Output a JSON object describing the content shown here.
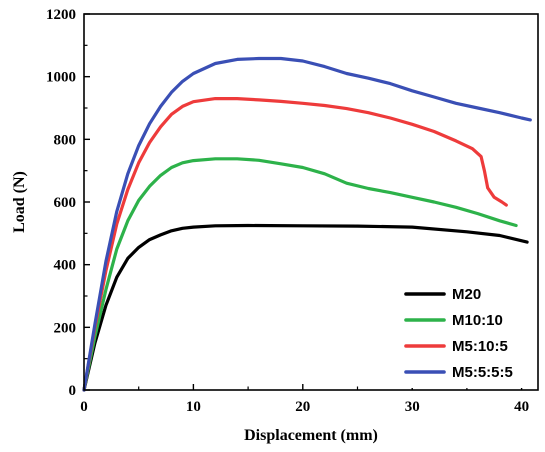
{
  "chart_data": {
    "type": "line",
    "xlabel": "Displacement (mm)",
    "ylabel": "Load (N)",
    "xlim": [
      0,
      41.5
    ],
    "ylim": [
      0,
      1200
    ],
    "xticks": [
      0,
      10,
      20,
      30,
      40
    ],
    "yticks": [
      0,
      200,
      400,
      600,
      800,
      1000,
      1200
    ],
    "tick_labels_x": [
      "0",
      "10",
      "20",
      "30",
      "40"
    ],
    "tick_labels_y": [
      "0",
      "200",
      "400",
      "600",
      "800",
      "1000",
      "1200"
    ],
    "grid": false,
    "legend_position": "bottom-right",
    "series": [
      {
        "name": "M20",
        "color": "#000000",
        "points": [
          [
            0,
            0
          ],
          [
            1,
            150
          ],
          [
            2,
            270
          ],
          [
            3,
            360
          ],
          [
            4,
            420
          ],
          [
            5,
            455
          ],
          [
            6,
            480
          ],
          [
            7,
            495
          ],
          [
            8,
            508
          ],
          [
            9,
            516
          ],
          [
            10,
            520
          ],
          [
            12,
            524
          ],
          [
            15,
            525
          ],
          [
            20,
            524
          ],
          [
            25,
            523
          ],
          [
            30,
            520
          ],
          [
            35,
            505
          ],
          [
            38,
            493
          ],
          [
            40.5,
            472
          ]
        ]
      },
      {
        "name": "M10:10",
        "color": "#2db24a",
        "points": [
          [
            0,
            0
          ],
          [
            1,
            170
          ],
          [
            2,
            320
          ],
          [
            3,
            450
          ],
          [
            4,
            540
          ],
          [
            5,
            605
          ],
          [
            6,
            650
          ],
          [
            7,
            685
          ],
          [
            8,
            710
          ],
          [
            9,
            725
          ],
          [
            10,
            732
          ],
          [
            12,
            738
          ],
          [
            14,
            738
          ],
          [
            16,
            733
          ],
          [
            18,
            722
          ],
          [
            20,
            710
          ],
          [
            22,
            690
          ],
          [
            24,
            660
          ],
          [
            26,
            643
          ],
          [
            28,
            630
          ],
          [
            30,
            615
          ],
          [
            32,
            600
          ],
          [
            34,
            583
          ],
          [
            36,
            563
          ],
          [
            38,
            540
          ],
          [
            39.5,
            525
          ]
        ]
      },
      {
        "name": "M5:10:5",
        "color": "#ee3b3b",
        "points": [
          [
            0,
            0
          ],
          [
            1,
            200
          ],
          [
            2,
            380
          ],
          [
            3,
            530
          ],
          [
            4,
            640
          ],
          [
            5,
            725
          ],
          [
            6,
            790
          ],
          [
            7,
            840
          ],
          [
            8,
            880
          ],
          [
            9,
            905
          ],
          [
            10,
            920
          ],
          [
            12,
            930
          ],
          [
            14,
            930
          ],
          [
            16,
            926
          ],
          [
            18,
            921
          ],
          [
            20,
            915
          ],
          [
            22,
            908
          ],
          [
            24,
            898
          ],
          [
            26,
            885
          ],
          [
            28,
            868
          ],
          [
            30,
            848
          ],
          [
            32,
            825
          ],
          [
            34,
            795
          ],
          [
            35.5,
            770
          ],
          [
            36.3,
            745
          ],
          [
            36.6,
            700
          ],
          [
            36.9,
            645
          ],
          [
            37.5,
            615
          ],
          [
            38.2,
            600
          ],
          [
            38.6,
            590
          ]
        ]
      },
      {
        "name": "M5:5:5:5",
        "color": "#3a4fb5",
        "points": [
          [
            0,
            0
          ],
          [
            1,
            210
          ],
          [
            2,
            410
          ],
          [
            3,
            570
          ],
          [
            4,
            690
          ],
          [
            5,
            780
          ],
          [
            6,
            850
          ],
          [
            7,
            905
          ],
          [
            8,
            950
          ],
          [
            9,
            985
          ],
          [
            10,
            1010
          ],
          [
            12,
            1042
          ],
          [
            14,
            1055
          ],
          [
            16,
            1058
          ],
          [
            18,
            1058
          ],
          [
            20,
            1050
          ],
          [
            22,
            1032
          ],
          [
            24,
            1010
          ],
          [
            26,
            995
          ],
          [
            28,
            978
          ],
          [
            30,
            955
          ],
          [
            32,
            935
          ],
          [
            34,
            915
          ],
          [
            36,
            900
          ],
          [
            38,
            885
          ],
          [
            40,
            868
          ],
          [
            40.8,
            862
          ]
        ]
      }
    ]
  }
}
